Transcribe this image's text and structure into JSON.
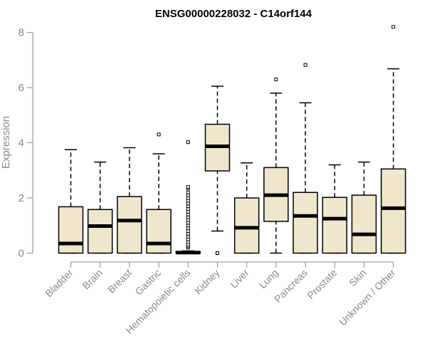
{
  "chart_data": {
    "type": "box",
    "title": "ENSG00000228032 - C14orf144",
    "ylabel": "Expression",
    "xlabel": "",
    "ylim": [
      0,
      8.4
    ],
    "yticks": [
      0,
      2,
      4,
      6,
      8
    ],
    "categories": [
      "Bladder",
      "Brain",
      "Breast",
      "Gastric",
      "Hematopoietic cells",
      "Kidney",
      "Liver",
      "Lung",
      "Pancreas",
      "Prostate",
      "Skin",
      "Unknown / Other"
    ],
    "boxes": [
      {
        "whisker_low": 0,
        "q1": 0,
        "median": 0.35,
        "q3": 1.68,
        "whisker_high": 3.75,
        "outliers": []
      },
      {
        "whisker_low": 0,
        "q1": 0,
        "median": 0.98,
        "q3": 1.58,
        "whisker_high": 3.3,
        "outliers": []
      },
      {
        "whisker_low": 0,
        "q1": 0,
        "median": 1.18,
        "q3": 2.05,
        "whisker_high": 3.82,
        "outliers": []
      },
      {
        "whisker_low": 0,
        "q1": 0,
        "median": 0.35,
        "q3": 1.58,
        "whisker_high": 3.6,
        "outliers": [
          4.3
        ]
      },
      {
        "whisker_low": 0,
        "q1": 0,
        "median": 0.02,
        "q3": 0.05,
        "whisker_high": 0.08,
        "outliers": [
          0.2,
          0.25,
          0.3,
          0.4,
          0.5,
          0.6,
          0.7,
          0.8,
          0.9,
          1.0,
          1.1,
          1.2,
          1.3,
          1.4,
          1.5,
          1.6,
          1.7,
          1.8,
          1.9,
          2.0,
          2.1,
          2.2,
          2.35,
          2.4,
          4.02
        ]
      },
      {
        "whisker_low": 0.8,
        "q1": 2.98,
        "median": 3.87,
        "q3": 4.67,
        "whisker_high": 6.05,
        "outliers": [
          0.0
        ]
      },
      {
        "whisker_low": 0,
        "q1": 0,
        "median": 0.92,
        "q3": 2.0,
        "whisker_high": 3.27,
        "outliers": []
      },
      {
        "whisker_low": 0,
        "q1": 1.15,
        "median": 2.1,
        "q3": 3.1,
        "whisker_high": 5.8,
        "outliers": [
          6.3
        ]
      },
      {
        "whisker_low": 0,
        "q1": 0,
        "median": 1.35,
        "q3": 2.2,
        "whisker_high": 5.45,
        "outliers": [
          6.82
        ]
      },
      {
        "whisker_low": 0,
        "q1": 0,
        "median": 1.25,
        "q3": 2.02,
        "whisker_high": 3.2,
        "outliers": []
      },
      {
        "whisker_low": 0,
        "q1": 0,
        "median": 0.68,
        "q3": 2.1,
        "whisker_high": 3.3,
        "outliers": []
      },
      {
        "whisker_low": 0,
        "q1": 0,
        "median": 1.63,
        "q3": 3.05,
        "whisker_high": 6.68,
        "outliers": [
          8.2
        ]
      }
    ],
    "colors": {
      "box_fill": "#efe6cc",
      "axis": "#8a8a8a"
    }
  }
}
